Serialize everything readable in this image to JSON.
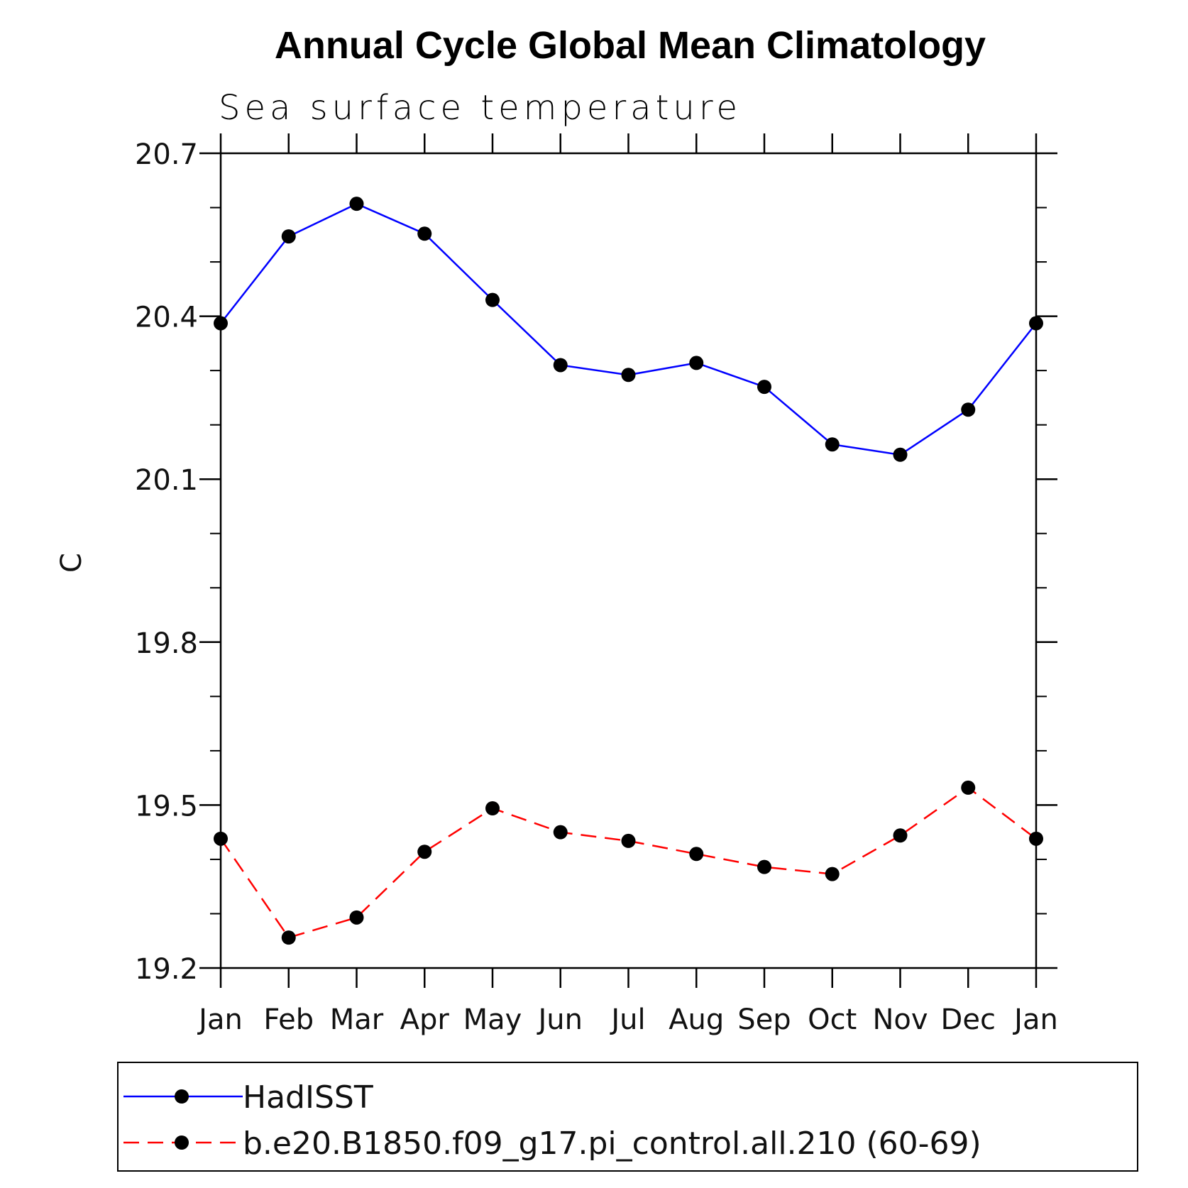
{
  "chart_data": {
    "type": "line",
    "title": "Annual Cycle Global Mean Climatology",
    "subtitle": "Sea surface temperature",
    "xlabel": "",
    "ylabel": "C",
    "categories": [
      "Jan",
      "Feb",
      "Mar",
      "Apr",
      "May",
      "Jun",
      "Jul",
      "Aug",
      "Sep",
      "Oct",
      "Nov",
      "Dec",
      "Jan"
    ],
    "yticks": [
      "20.7",
      "20.4",
      "20.1",
      "19.8",
      "19.5",
      "19.2"
    ],
    "ylim": [
      19.2,
      20.7
    ],
    "grid": false,
    "legend_position": "bottom",
    "series": [
      {
        "name": "HadISST",
        "color": "#0000ff",
        "line_style": "solid",
        "marker": "filled-circle",
        "values": [
          20.387,
          20.547,
          20.607,
          20.552,
          20.43,
          20.31,
          20.292,
          20.314,
          20.27,
          20.164,
          20.145,
          20.228,
          20.387
        ]
      },
      {
        "name": "b.e20.B1850.f09_g17.pi_control.all.210 (60-69)",
        "color": "#ff0000",
        "line_style": "dashed",
        "marker": "filled-circle",
        "values": [
          19.438,
          19.256,
          19.293,
          19.414,
          19.494,
          19.45,
          19.434,
          19.41,
          19.386,
          19.373,
          19.444,
          19.532,
          19.438
        ]
      }
    ]
  }
}
